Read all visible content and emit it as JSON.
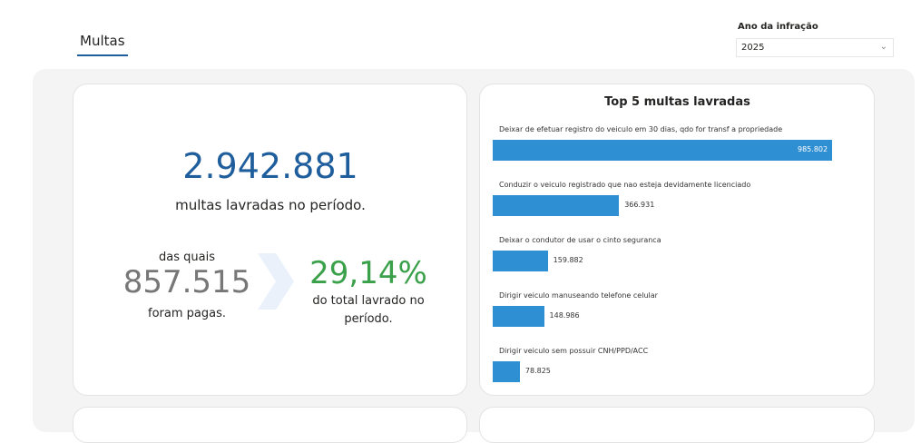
{
  "tab": {
    "label": "Multas"
  },
  "filter": {
    "label": "Ano da infração",
    "value": "2025"
  },
  "kpi": {
    "total": "2.942.881",
    "total_caption": "multas lavradas no período.",
    "paid_prefix": "das quais",
    "paid": "857.515",
    "paid_caption": "foram pagas.",
    "percent": "29,14%",
    "percent_caption_1": "do total lavrado no",
    "percent_caption_2": "período.",
    "colors": {
      "total": "#1f5e9c",
      "paid": "#777777",
      "percent": "#3aa04a"
    }
  },
  "chart_data": {
    "type": "bar",
    "orientation": "horizontal",
    "title": "Top 5 multas lavradas",
    "categories": [
      "Deixar de efetuar registro do veiculo em 30 dias, qdo for transf a propriedade",
      "Conduzir o veiculo registrado que nao esteja devidamente licenciado",
      "Deixar o condutor de usar o cinto seguranca",
      "Dirigir veiculo manuseando telefone celular",
      "Dirigir veiculo sem possuir CNH/PPD/ACC"
    ],
    "values": [
      985802,
      366931,
      159882,
      148986,
      78825
    ],
    "labels": [
      "985.802",
      "366.931",
      "159.882",
      "148.986",
      "78.825"
    ],
    "color": "#2f8fd3"
  }
}
